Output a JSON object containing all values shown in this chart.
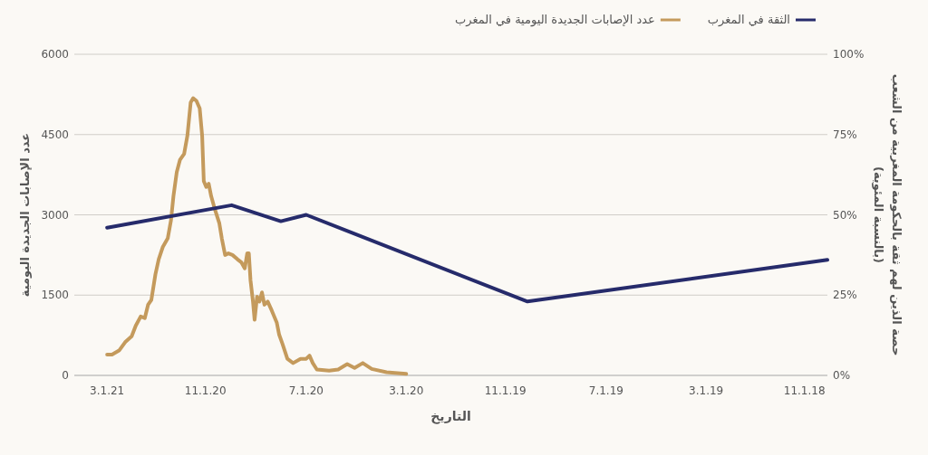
{
  "chart_data": {
    "type": "line",
    "xlabel": "التاريخ",
    "ylabel": "عدد الإصابات الجديدة اليومية",
    "y2label": "حصة الذين لهم ثقة بالحكومة المغربية من الشعب\n(بالنسبة المئوية)",
    "xlim": [
      "2021-04-10",
      "2018-10-04"
    ],
    "xticks": [
      {
        "value": "2021-03-01",
        "label": "3.1.21"
      },
      {
        "value": "2020-11-01",
        "label": "11.1.20"
      },
      {
        "value": "2020-07-01",
        "label": "7.1.20"
      },
      {
        "value": "2020-03-01",
        "label": "3.1.20"
      },
      {
        "value": "2019-11-01",
        "label": "11.1.19"
      },
      {
        "value": "2019-07-01",
        "label": "7.1.19"
      },
      {
        "value": "2019-03-01",
        "label": "3.1.19"
      },
      {
        "value": "2018-11-01",
        "label": "11.1.18"
      }
    ],
    "ylim": [
      0,
      6000
    ],
    "yticks": [
      0,
      1500,
      3000,
      4500,
      6000
    ],
    "y2lim": [
      0,
      100
    ],
    "y2ticks": [
      {
        "value": 0,
        "label": "0%"
      },
      {
        "value": 25,
        "label": "25%"
      },
      {
        "value": 50,
        "label": "50%"
      },
      {
        "value": 75,
        "label": "75%"
      },
      {
        "value": 100,
        "label": "100%"
      }
    ],
    "grid": "y",
    "legend": "top",
    "series": [
      {
        "name": "الثقة في المغرب",
        "color": "#262b6b",
        "axis": "y2",
        "x": [
          "2021-03-01",
          "2020-09-30",
          "2020-08-01",
          "2020-07-01",
          "2019-10-05",
          "2018-10-04"
        ],
        "values": [
          46,
          53,
          48,
          50,
          23,
          36
        ]
      },
      {
        "name": "عدد الإصابات الجديدة اليومية في المغرب",
        "color": "#c49a5c",
        "x": [
          "2021-03-01",
          "2021-02-23",
          "2021-02-14",
          "2021-02-07",
          "2021-01-30",
          "2021-01-25",
          "2021-01-19",
          "2021-01-14",
          "2021-01-10",
          "2021-01-06",
          "2021-01-01",
          "2020-12-28",
          "2020-12-23",
          "2020-12-17",
          "2020-12-13",
          "2020-12-10",
          "2020-12-06",
          "2020-12-02",
          "2020-11-27",
          "2020-11-23",
          "2020-11-19",
          "2020-11-16",
          "2020-11-12",
          "2020-11-08",
          "2020-11-05",
          "2020-11-03",
          "2020-10-31",
          "2020-10-28",
          "2020-10-25",
          "2020-10-21",
          "2020-10-15",
          "2020-10-12",
          "2020-10-08",
          "2020-10-04",
          "2020-09-29",
          "2020-09-23",
          "2020-09-18",
          "2020-09-14",
          "2020-09-11",
          "2020-09-09",
          "2020-09-07",
          "2020-09-04",
          "2020-09-02",
          "2020-08-30",
          "2020-08-27",
          "2020-08-24",
          "2020-08-21",
          "2020-08-17",
          "2020-08-12",
          "2020-08-06",
          "2020-08-03",
          "2020-07-30",
          "2020-07-24",
          "2020-07-17",
          "2020-07-08",
          "2020-07-01",
          "2020-06-27",
          "2020-06-23",
          "2020-06-18",
          "2020-06-03",
          "2020-05-23",
          "2020-05-12",
          "2020-05-03",
          "2020-04-23",
          "2020-04-12",
          "2020-03-25",
          "2020-03-01"
        ],
        "values": [
          390,
          390,
          470,
          620,
          730,
          930,
          1100,
          1070,
          1320,
          1410,
          1890,
          2170,
          2400,
          2560,
          2900,
          3350,
          3800,
          4030,
          4140,
          4480,
          5100,
          5180,
          5130,
          4990,
          4480,
          3630,
          3520,
          3580,
          3350,
          3130,
          2840,
          2560,
          2250,
          2280,
          2250,
          2170,
          2110,
          2000,
          2280,
          2280,
          1780,
          1380,
          1040,
          1470,
          1380,
          1550,
          1320,
          1380,
          1210,
          990,
          760,
          590,
          310,
          230,
          310,
          310,
          370,
          230,
          110,
          90,
          110,
          210,
          140,
          230,
          120,
          60,
          30
        ]
      }
    ]
  }
}
